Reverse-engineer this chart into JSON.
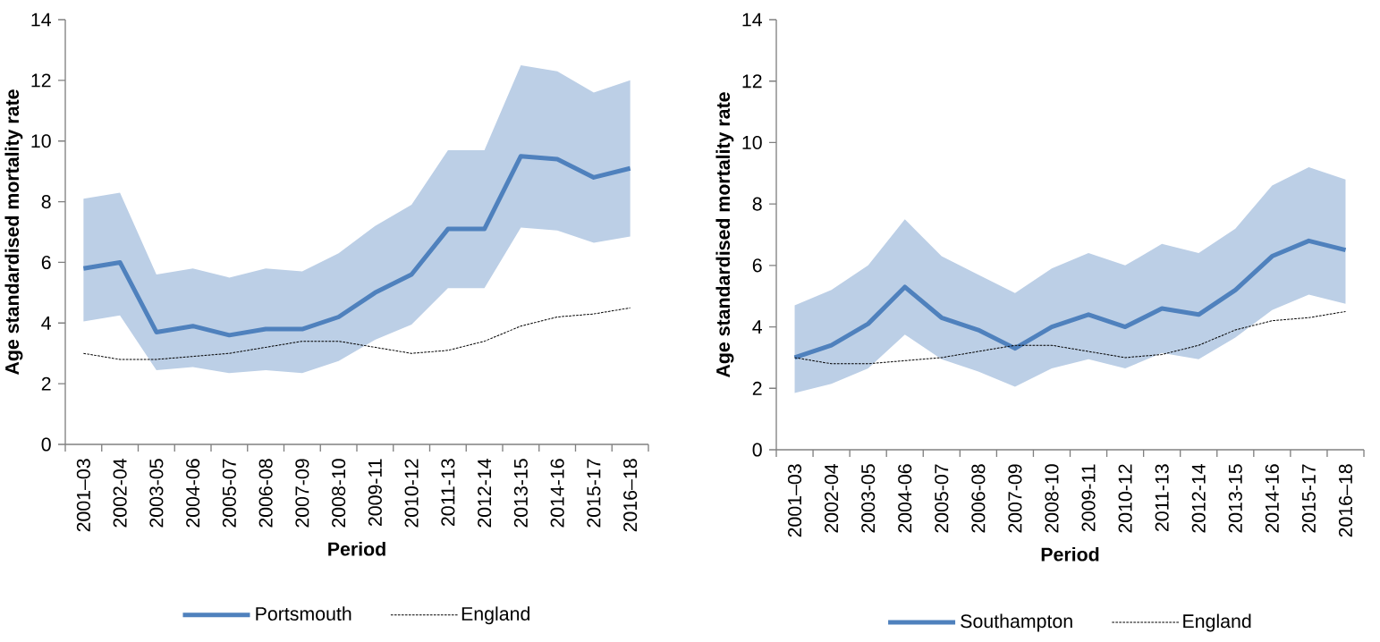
{
  "chart_data": [
    {
      "type": "line",
      "xlabel": "Period",
      "ylabel": "Age standardised mortality rate",
      "categories": [
        "2001–03",
        "2002-04",
        "2003-05",
        "2004-06",
        "2005-07",
        "2006-08",
        "2007-09",
        "2008-10",
        "2009-11",
        "2010-12",
        "2011-13",
        "2012-14",
        "2013-15",
        "2014-16",
        "2015-17",
        "2016–18"
      ],
      "series": [
        {
          "name": "Portsmouth",
          "color": "#4f81bd",
          "line_style": "solid",
          "values": [
            5.8,
            6.0,
            3.7,
            3.9,
            3.6,
            3.8,
            3.8,
            4.2,
            5.0,
            5.6,
            7.1,
            7.1,
            9.5,
            9.4,
            8.8,
            9.1
          ],
          "upper": [
            8.1,
            8.3,
            5.6,
            5.8,
            5.5,
            5.8,
            5.7,
            6.3,
            7.2,
            7.9,
            9.7,
            9.7,
            12.5,
            12.3,
            11.6,
            12.0
          ],
          "lower": [
            4.05,
            4.25,
            2.45,
            2.55,
            2.35,
            2.45,
            2.35,
            2.75,
            3.45,
            3.95,
            5.15,
            5.15,
            7.15,
            7.05,
            6.65,
            6.85
          ]
        },
        {
          "name": "England",
          "color": "#000000",
          "line_style": "dashed",
          "values": [
            3.0,
            2.8,
            2.8,
            2.9,
            3.0,
            3.2,
            3.4,
            3.4,
            3.2,
            3.0,
            3.1,
            3.4,
            3.9,
            4.2,
            4.3,
            4.5
          ]
        }
      ],
      "ylim": [
        0,
        14
      ],
      "yticks": [
        0,
        2,
        4,
        6,
        8,
        10,
        12,
        14
      ],
      "grid": false,
      "legend": "bottom"
    },
    {
      "type": "line",
      "xlabel": "Period",
      "ylabel": "Age standardised mortality rate",
      "categories": [
        "2001–03",
        "2002-04",
        "2003-05",
        "2004-06",
        "2005-07",
        "2006-08",
        "2007-09",
        "2008-10",
        "2009-11",
        "2010-12",
        "2011-13",
        "2012-14",
        "2013-15",
        "2014-16",
        "2015-17",
        "2016–18"
      ],
      "series": [
        {
          "name": "Southampton",
          "color": "#4f81bd",
          "line_style": "solid",
          "values": [
            3.0,
            3.4,
            4.1,
            5.3,
            4.3,
            3.9,
            3.3,
            4.0,
            4.4,
            4.0,
            4.6,
            4.4,
            5.2,
            6.3,
            6.8,
            6.5
          ],
          "upper": [
            4.7,
            5.2,
            6.0,
            7.5,
            6.3,
            5.7,
            5.1,
            5.9,
            6.4,
            6.0,
            6.7,
            6.4,
            7.2,
            8.6,
            9.2,
            8.8
          ],
          "lower": [
            1.85,
            2.15,
            2.65,
            3.75,
            2.95,
            2.55,
            2.05,
            2.65,
            2.95,
            2.65,
            3.15,
            2.95,
            3.65,
            4.55,
            5.05,
            4.75
          ]
        },
        {
          "name": "England",
          "color": "#000000",
          "line_style": "dashed",
          "values": [
            3.0,
            2.8,
            2.8,
            2.9,
            3.0,
            3.2,
            3.4,
            3.4,
            3.2,
            3.0,
            3.1,
            3.4,
            3.9,
            4.2,
            4.3,
            4.5
          ]
        }
      ],
      "ylim": [
        0,
        14
      ],
      "yticks": [
        0,
        2,
        4,
        6,
        8,
        10,
        12,
        14
      ],
      "grid": false,
      "legend": "bottom"
    }
  ]
}
